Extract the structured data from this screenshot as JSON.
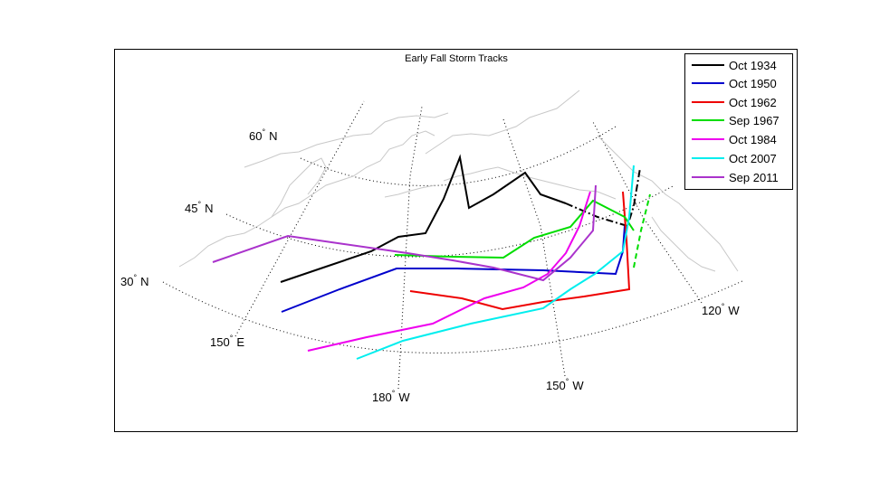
{
  "title": "Early Fall Storm Tracks",
  "latitude_labels": [
    {
      "deg": "60",
      "hemi": "N"
    },
    {
      "deg": "45",
      "hemi": "N"
    },
    {
      "deg": "30",
      "hemi": "N"
    }
  ],
  "longitude_labels": [
    {
      "deg": "150",
      "hemi": "E"
    },
    {
      "deg": "180",
      "hemi": "W"
    },
    {
      "deg": "150",
      "hemi": "W"
    },
    {
      "deg": "120",
      "hemi": "W"
    }
  ],
  "colors": {
    "coastline": "#c8c8c8",
    "graticule": "#000000",
    "frame": "#000000"
  },
  "legend": {
    "placement": "top-right",
    "items": [
      {
        "label": "Oct 1934",
        "color": "#000000"
      },
      {
        "label": "Oct 1950",
        "color": "#0000cc"
      },
      {
        "label": "Oct 1962",
        "color": "#ee0000"
      },
      {
        "label": "Sep 1967",
        "color": "#00dd00"
      },
      {
        "label": "Oct 1984",
        "color": "#ee00ee"
      },
      {
        "label": "Oct 2007",
        "color": "#00eeee"
      },
      {
        "label": "Sep 2011",
        "color": "#aa33cc"
      }
    ]
  }
}
